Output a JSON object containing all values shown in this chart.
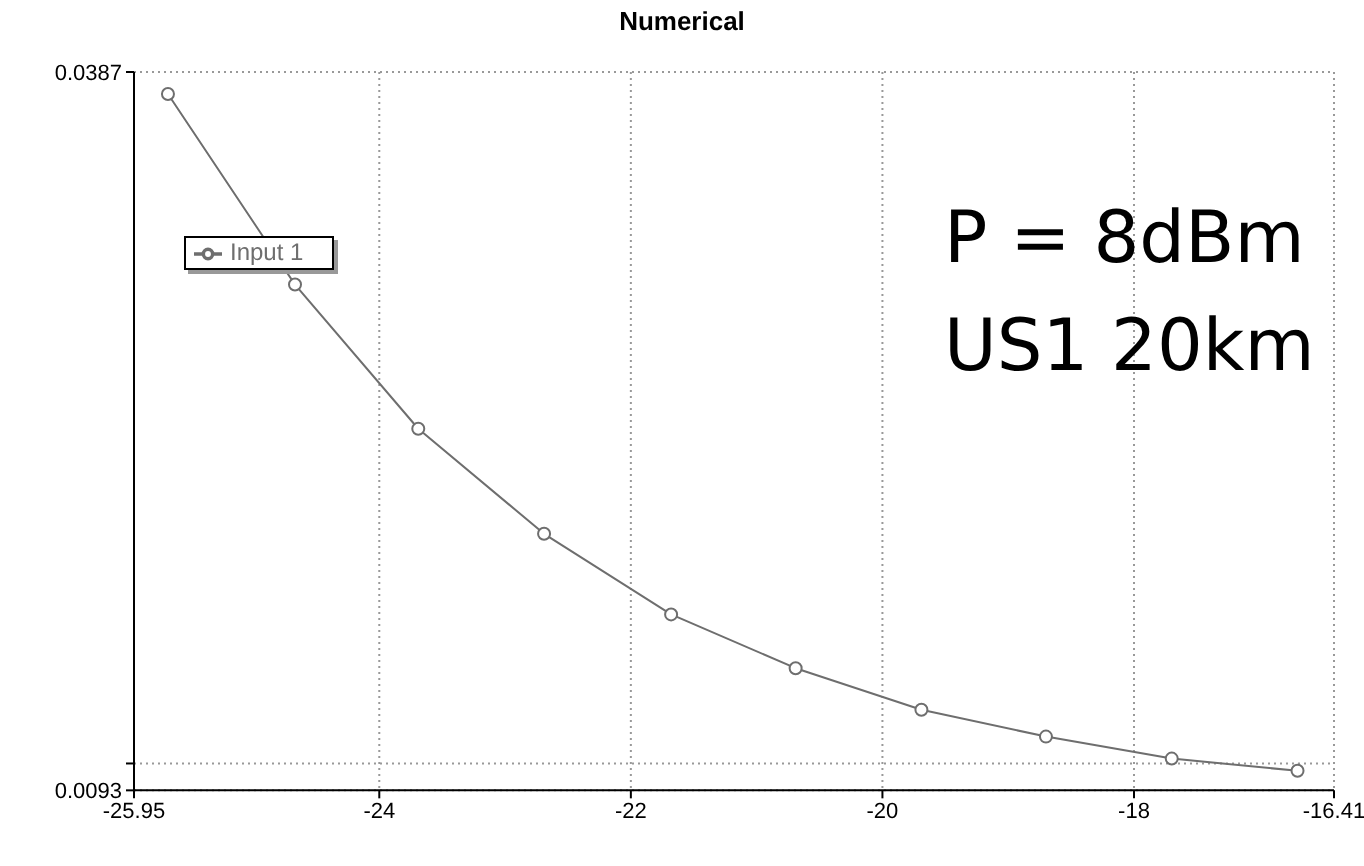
{
  "chart_data": {
    "type": "line",
    "title": "Numerical",
    "x": [
      -25.68,
      -24.67,
      -23.69,
      -22.69,
      -21.68,
      -20.69,
      -19.69,
      -18.7,
      -17.7,
      -16.7
    ],
    "series": [
      {
        "name": "Input 1",
        "color": "#6e6e6e",
        "values": [
          0.0378,
          0.03,
          0.0241,
          0.0198,
          0.0165,
          0.0143,
          0.0126,
          0.0115,
          0.0106,
          0.0101
        ]
      }
    ],
    "xlim": [
      -25.95,
      -16.41
    ],
    "xticks": [
      -25.95,
      -24,
      -22,
      -20,
      -18,
      -16.41
    ],
    "ylim": [
      0.0093,
      0.0387
    ],
    "yticks": [
      0.0093,
      {
        "value": 0.0104,
        "label": null
      },
      0.0387
    ],
    "grid": true,
    "legend": "top left",
    "marker": "circle",
    "line_style": "solid",
    "annotations": [
      "P = 8dBm",
      "US1 20km"
    ]
  }
}
